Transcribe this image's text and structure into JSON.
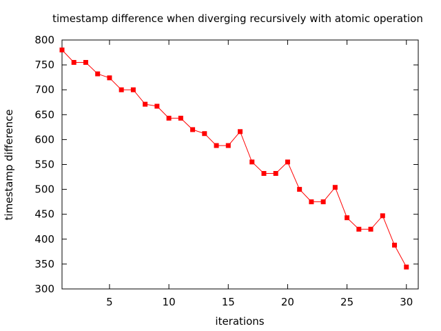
{
  "chart_data": {
    "type": "line",
    "title": "timestamp difference when diverging recursively with atomic operation",
    "xlabel": "iterations",
    "ylabel": "timestamp difference",
    "xlim": [
      1,
      31
    ],
    "ylim": [
      300,
      800
    ],
    "xticks": [
      5,
      10,
      15,
      20,
      25,
      30
    ],
    "yticks": [
      300,
      350,
      400,
      450,
      500,
      550,
      600,
      650,
      700,
      750,
      800
    ],
    "grid": false,
    "legend": "none",
    "series": [
      {
        "color": "#ff0000",
        "marker": "square",
        "x": [
          1,
          2,
          3,
          4,
          5,
          6,
          7,
          8,
          9,
          10,
          11,
          12,
          13,
          14,
          15,
          16,
          17,
          18,
          19,
          20,
          21,
          22,
          23,
          24,
          25,
          26,
          27,
          28,
          29,
          30
        ],
        "y": [
          780,
          755,
          755,
          732,
          724,
          700,
          700,
          671,
          667,
          643,
          643,
          620,
          612,
          588,
          588,
          616,
          555,
          532,
          532,
          555,
          500,
          475,
          475,
          504,
          443,
          420,
          420,
          447,
          388,
          344
        ]
      }
    ]
  }
}
